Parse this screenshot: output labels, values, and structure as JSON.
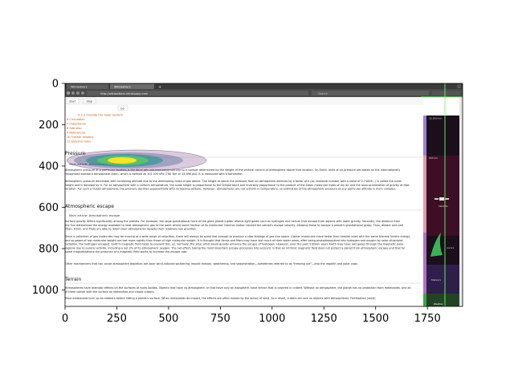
{
  "figure": {
    "x_ticks": [
      "0",
      "250",
      "500",
      "750",
      "1000",
      "1250",
      "1500",
      "1750"
    ],
    "y_ticks": [
      "0",
      "200",
      "400",
      "600",
      "800",
      "1000"
    ]
  },
  "browser": {
    "tabs": [
      {
        "label": "Wikiwalkers"
      },
      {
        "label": "Wikiwalkers"
      }
    ],
    "new_tab": "+",
    "url": "http://wikiwalkers.herokuapp.com",
    "search_placeholder": "Search"
  },
  "controls": {
    "start_label": "Start",
    "stop_label": "Stop",
    "go_label": "Go"
  },
  "toc": {
    "items": [
      "5.2.2 Outside the Solar System",
      "6 Circulation",
      "7 Importance",
      "8 See also",
      "9 References",
      "10 Further reading",
      "11 External links"
    ]
  },
  "article": {
    "section_pressure": "Pressure",
    "main_article_pressure": "Main article: Atmospheric pressure",
    "para_pressure_1": "Atmospheric pressure at a particular location is the force per unit area perpendicular to a surface determined by the weight of the vertical column of atmosphere above that location. On Earth, units of air pressure are based on the internationally recognized standard atmosphere (atm), which is defined as 101.325 kPa (760 Torr or 14.696 psi). It is measured with a barometer.",
    "para_pressure_2": "Atmospheric pressure decreases with increasing altitude due to the diminishing mass of gas above. The height at which the pressure from an atmosphere declines by a factor of e (an irrational number with a value of 2.71828...) is called the scale height and is denoted by H. For an atmosphere with a uniform temperature, the scale height is proportional to the temperature and inversely proportional to the product of the mean molecular mass of dry air and the local acceleration of gravity at that location. For such a model atmosphere, the pressure declines exponentially with increasing altitude. However, atmospheres are not uniform in temperature, so estimation of the atmospheric pressure at any particular altitude is more complex.",
    "section_escape": "Atmospheric escape",
    "main_article_escape": "Main article: Atmospheric escape",
    "para_escape_1": "Surface gravity differs significantly among the planets. For example, the large gravitational force of the giant planet Jupiter retains light gases such as hydrogen and helium that escape from objects with lower gravity. Secondly, the distance from the Sun determines the energy available to heat atmospheric gas to the point where some fraction of its molecules' thermal motion exceed the planet's escape velocity, allowing those to escape a planet's gravitational grasp. Thus, distant and cold Titan, Triton, and Pluto are able to retain their atmospheres despite their relatively low gravities.",
    "para_escape_2": "Since a collection of gas molecules may be moving at a wide range of velocities, there will always be some fast enough to produce a slow leakage of gas into space. Lighter molecules move faster than heavier ones with the same thermal kinetic energy, and so gases of low molecular weight are lost more rapidly than those of high molecular weight. It is thought that Venus and Mars may have lost much of their water when, after being photodissociated into hydrogen and oxygen by solar ultraviolet radiation, the hydrogen escaped. Earth's magnetic field helps to prevent this, as, normally, the solar wind would greatly enhance the escape of hydrogen. However, over the past 3 billion years Earth may have lost gases through the magnetic polar regions due to auroral activity, including a net 2% of its atmospheric oxygen. The net effect, taking the most important escape processes into account, is that an intrinsic magnetic field does not protect a planet from atmospheric escape and that for some magnetizations the presence of a magnetic field works to increase the escape rate.",
    "para_escape_3": "Other mechanisms that can cause atmosphere depletion are solar wind-induced sputtering, impact erosion, weathering, and sequestration—sometimes referred to as \"freezing out\"—into the regolith and polar caps.",
    "section_terrain": "Terrain",
    "para_terrain_1": "Atmospheres have dramatic effects on the surfaces of rocky bodies. Objects that have no atmosphere, or that have only an exosphere, have terrain that is covered in craters. Without an atmosphere, the planet has no protection from meteoroids, and all of them collide with the surface as meteorites and create craters.",
    "para_terrain_2": "Most meteoroids burn up as meteors before hitting a planet's surface. When meteoroids do impact, the effects are often erased by the action of wind. As a result, craters are rare on objects with atmospheres. Fertilization (wind)"
  },
  "sidebar": {
    "top_label": "10,000 km",
    "mid_label": "690 km",
    "satellite_label": "Satellite",
    "aurora_label": "Aurora",
    "meteors_label": "Meteors",
    "bottom_label": "Weather",
    "bands": [
      {
        "color": "#9b7fd6"
      },
      {
        "color": "#e09aa8"
      },
      {
        "color": "#b070c8"
      },
      {
        "color": "#3aa84a"
      }
    ]
  },
  "overlay": {
    "heatmap_colors": [
      "#440154",
      "#3b528b",
      "#21918c",
      "#5ec962",
      "#fde725"
    ]
  }
}
